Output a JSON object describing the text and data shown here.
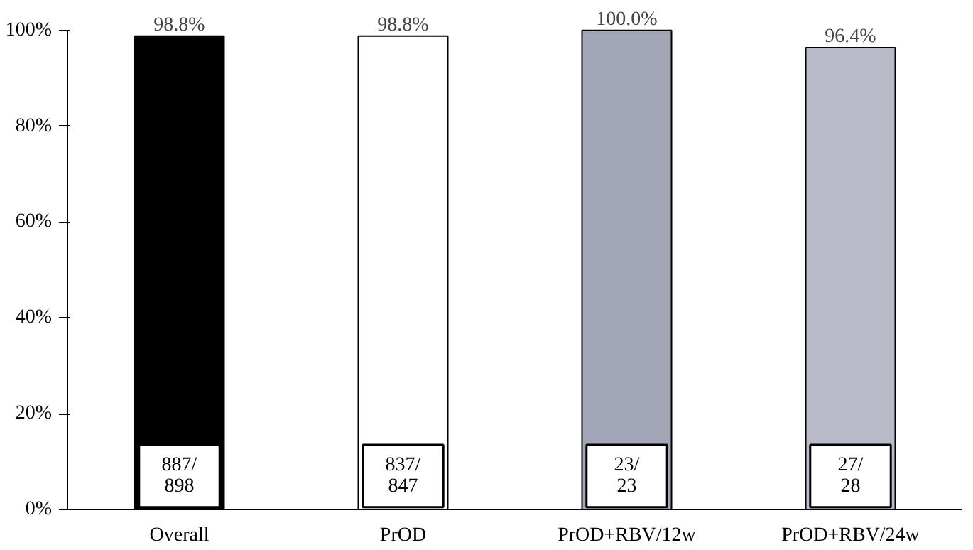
{
  "chart_data": {
    "type": "bar",
    "categories": [
      "Overall",
      "PrOD",
      "PrOD+RBV/12w",
      "PrOD+RBV/24w"
    ],
    "values": [
      98.8,
      98.8,
      100.0,
      96.4
    ],
    "colors": [
      "#000000",
      "#ffffff",
      "#a3a6b6",
      "#b9bbc9"
    ],
    "value_labels": [
      "98.8%",
      "98.8%",
      "100.0%",
      "96.4%"
    ],
    "ylim": [
      0,
      100
    ],
    "yticks": [
      {
        "value": 0,
        "label": "0%"
      },
      {
        "value": 20,
        "label": "20%"
      },
      {
        "value": 40,
        "label": "40%"
      },
      {
        "value": 60,
        "label": "60%"
      },
      {
        "value": 80,
        "label": "80%"
      },
      {
        "value": 100,
        "label": "100%"
      }
    ],
    "grid": false,
    "annotations": [
      {
        "text": "887/\n898",
        "x": "Overall",
        "y": 0
      },
      {
        "text": "837/\n847",
        "x": "PrOD",
        "y": 0
      },
      {
        "text": "23/\n23",
        "x": "PrOD+RBV/12w",
        "y": 0
      },
      {
        "text": "27/\n28",
        "x": "PrOD+RBV/24w",
        "y": 0
      }
    ]
  }
}
